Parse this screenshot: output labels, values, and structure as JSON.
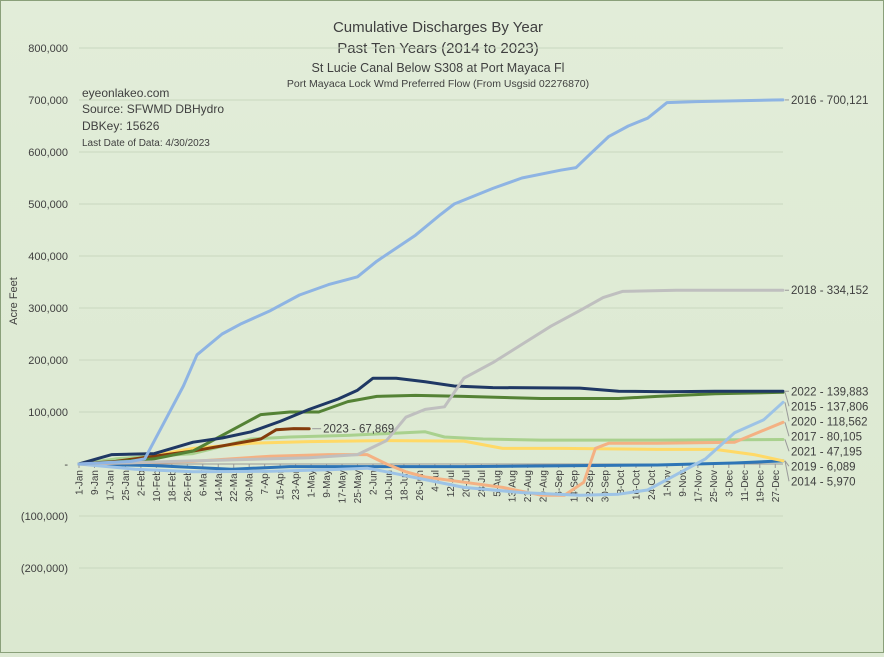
{
  "chart_data": {
    "type": "line",
    "title": "Cumulative Discharges By Year",
    "subtitle": "Past Ten Years (2014 to 2023)",
    "subtitle2": "St Lucie Canal Below S308 at Port Mayaca Fl",
    "subtitle3": "Port Mayaca Lock Wmd Preferred Flow (From Usgsid 02276870)",
    "info": {
      "site": "eyeonlakeo.com",
      "source": "Source: SFWMD DBHydro",
      "dbkey": "DBKey: 15626",
      "last_date": "Last Date of Data: 4/30/2023"
    },
    "ylabel": "Acre Feet",
    "xlabel": "",
    "ylim": [
      -200000,
      800000
    ],
    "yticks": [
      {
        "value": 800000,
        "label": "800,000"
      },
      {
        "value": 700000,
        "label": "700,000"
      },
      {
        "value": 600000,
        "label": "600,000"
      },
      {
        "value": 500000,
        "label": "500,000"
      },
      {
        "value": 400000,
        "label": "400,000"
      },
      {
        "value": 300000,
        "label": "300,000"
      },
      {
        "value": 200000,
        "label": "200,000"
      },
      {
        "value": 100000,
        "label": "100,000"
      },
      {
        "value": 0,
        "label": "-"
      },
      {
        "value": -100000,
        "label": "(100,000)"
      },
      {
        "value": -200000,
        "label": "(200,000)"
      }
    ],
    "xlim": [
      1,
      365
    ],
    "xticks": [
      {
        "day": 1,
        "label": "1-Jan"
      },
      {
        "day": 9,
        "label": "9-Jan"
      },
      {
        "day": 17,
        "label": "17-Jan"
      },
      {
        "day": 25,
        "label": "25-Jan"
      },
      {
        "day": 33,
        "label": "2-Feb"
      },
      {
        "day": 41,
        "label": "10-Feb"
      },
      {
        "day": 49,
        "label": "18-Feb"
      },
      {
        "day": 57,
        "label": "26-Feb"
      },
      {
        "day": 65,
        "label": "6-Mar"
      },
      {
        "day": 73,
        "label": "14-Mar"
      },
      {
        "day": 81,
        "label": "22-Mar"
      },
      {
        "day": 89,
        "label": "30-Mar"
      },
      {
        "day": 97,
        "label": "7-Apr"
      },
      {
        "day": 105,
        "label": "15-Apr"
      },
      {
        "day": 113,
        "label": "23-Apr"
      },
      {
        "day": 121,
        "label": "1-May"
      },
      {
        "day": 129,
        "label": "9-May"
      },
      {
        "day": 137,
        "label": "17-May"
      },
      {
        "day": 145,
        "label": "25-May"
      },
      {
        "day": 153,
        "label": "2-Jun"
      },
      {
        "day": 161,
        "label": "10-Jun"
      },
      {
        "day": 169,
        "label": "18-Jun"
      },
      {
        "day": 177,
        "label": "26-Jun"
      },
      {
        "day": 185,
        "label": "4-Jul"
      },
      {
        "day": 193,
        "label": "12-Jul"
      },
      {
        "day": 201,
        "label": "20-Jul"
      },
      {
        "day": 209,
        "label": "28-Jul"
      },
      {
        "day": 217,
        "label": "5-Aug"
      },
      {
        "day": 225,
        "label": "13-Aug"
      },
      {
        "day": 233,
        "label": "21-Aug"
      },
      {
        "day": 241,
        "label": "29-Aug"
      },
      {
        "day": 249,
        "label": "6-Sep"
      },
      {
        "day": 257,
        "label": "14-Sep"
      },
      {
        "day": 265,
        "label": "22-Sep"
      },
      {
        "day": 273,
        "label": "30-Sep"
      },
      {
        "day": 281,
        "label": "8-Oct"
      },
      {
        "day": 289,
        "label": "16-Oct"
      },
      {
        "day": 297,
        "label": "24-Oct"
      },
      {
        "day": 305,
        "label": "1-Nov"
      },
      {
        "day": 313,
        "label": "9-Nov"
      },
      {
        "day": 321,
        "label": "17-Nov"
      },
      {
        "day": 329,
        "label": "25-Nov"
      },
      {
        "day": 337,
        "label": "3-Dec"
      },
      {
        "day": 345,
        "label": "11-Dec"
      },
      {
        "day": 353,
        "label": "19-Dec"
      },
      {
        "day": 361,
        "label": "27-Dec"
      }
    ],
    "grid": true,
    "legend": "end-labels-right",
    "series": [
      {
        "year": "2016",
        "label": "2016 - 700,121",
        "color": "#8eb4e3",
        "final": 700121,
        "points": [
          [
            1,
            0
          ],
          [
            28,
            5000
          ],
          [
            35,
            10000
          ],
          [
            45,
            80000
          ],
          [
            55,
            150000
          ],
          [
            62,
            210000
          ],
          [
            75,
            250000
          ],
          [
            85,
            270000
          ],
          [
            100,
            295000
          ],
          [
            115,
            325000
          ],
          [
            130,
            345000
          ],
          [
            140,
            355000
          ],
          [
            145,
            360000
          ],
          [
            155,
            390000
          ],
          [
            175,
            440000
          ],
          [
            188,
            480000
          ],
          [
            195,
            500000
          ],
          [
            215,
            530000
          ],
          [
            230,
            550000
          ],
          [
            250,
            565000
          ],
          [
            258,
            570000
          ],
          [
            265,
            595000
          ],
          [
            275,
            630000
          ],
          [
            285,
            650000
          ],
          [
            295,
            665000
          ],
          [
            300,
            680000
          ],
          [
            305,
            695000
          ],
          [
            320,
            697000
          ],
          [
            360,
            700000
          ],
          [
            365,
            700121
          ]
        ]
      },
      {
        "year": "2018",
        "label": "2018 - 334,152",
        "color": "#bfbfbf",
        "final": 334152,
        "points": [
          [
            1,
            0
          ],
          [
            60,
            6000
          ],
          [
            120,
            12000
          ],
          [
            145,
            18000
          ],
          [
            160,
            45000
          ],
          [
            170,
            90000
          ],
          [
            180,
            105000
          ],
          [
            190,
            110000
          ],
          [
            200,
            165000
          ],
          [
            215,
            195000
          ],
          [
            230,
            230000
          ],
          [
            245,
            265000
          ],
          [
            260,
            295000
          ],
          [
            272,
            320000
          ],
          [
            282,
            332000
          ],
          [
            310,
            334000
          ],
          [
            365,
            334152
          ]
        ]
      },
      {
        "year": "2022",
        "label": "2022 - 139,883",
        "color": "#1f3864",
        "final": 139883,
        "points": [
          [
            1,
            0
          ],
          [
            12,
            12000
          ],
          [
            18,
            18000
          ],
          [
            40,
            20000
          ],
          [
            60,
            42000
          ],
          [
            75,
            50000
          ],
          [
            90,
            62000
          ],
          [
            105,
            82000
          ],
          [
            120,
            105000
          ],
          [
            135,
            125000
          ],
          [
            145,
            142000
          ],
          [
            153,
            165000
          ],
          [
            165,
            165000
          ],
          [
            180,
            158000
          ],
          [
            195,
            150000
          ],
          [
            215,
            147000
          ],
          [
            260,
            146000
          ],
          [
            280,
            140000
          ],
          [
            305,
            139000
          ],
          [
            330,
            140000
          ],
          [
            365,
            139883
          ]
        ]
      },
      {
        "year": "2015",
        "label": "2015 - 137,806",
        "color": "#548235",
        "final": 137806,
        "points": [
          [
            1,
            0
          ],
          [
            20,
            4000
          ],
          [
            40,
            10000
          ],
          [
            60,
            25000
          ],
          [
            80,
            65000
          ],
          [
            95,
            95000
          ],
          [
            110,
            100000
          ],
          [
            125,
            100000
          ],
          [
            140,
            120000
          ],
          [
            155,
            130000
          ],
          [
            175,
            132000
          ],
          [
            200,
            130000
          ],
          [
            240,
            126000
          ],
          [
            280,
            126000
          ],
          [
            300,
            130000
          ],
          [
            330,
            135000
          ],
          [
            365,
            137806
          ]
        ]
      },
      {
        "year": "2020",
        "label": "2020 - 118,562",
        "color": "#9dc3e6",
        "final": 118562,
        "points": [
          [
            1,
            0
          ],
          [
            30,
            -10000
          ],
          [
            60,
            -15000
          ],
          [
            100,
            -14000
          ],
          [
            130,
            -11000
          ],
          [
            150,
            -8000
          ],
          [
            160,
            -15000
          ],
          [
            180,
            -30000
          ],
          [
            200,
            -45000
          ],
          [
            230,
            -55000
          ],
          [
            260,
            -60000
          ],
          [
            280,
            -58000
          ],
          [
            295,
            -50000
          ],
          [
            310,
            -20000
          ],
          [
            325,
            10000
          ],
          [
            340,
            60000
          ],
          [
            355,
            85000
          ],
          [
            365,
            118562
          ]
        ]
      },
      {
        "year": "2017",
        "label": "2017 - 80,105",
        "color": "#f4b183",
        "final": 80105,
        "points": [
          [
            1,
            0
          ],
          [
            60,
            5000
          ],
          [
            100,
            15000
          ],
          [
            130,
            18000
          ],
          [
            150,
            18000
          ],
          [
            160,
            0
          ],
          [
            170,
            -15000
          ],
          [
            180,
            -25000
          ],
          [
            200,
            -35000
          ],
          [
            220,
            -45000
          ],
          [
            240,
            -60000
          ],
          [
            252,
            -60000
          ],
          [
            262,
            -35000
          ],
          [
            268,
            30000
          ],
          [
            275,
            40000
          ],
          [
            300,
            40000
          ],
          [
            340,
            42000
          ],
          [
            355,
            65000
          ],
          [
            365,
            80105
          ]
        ]
      },
      {
        "year": "2023",
        "label": "2023 - 67,869",
        "color": "#843c0c",
        "final": 67869,
        "points": [
          [
            1,
            0
          ],
          [
            20,
            5000
          ],
          [
            40,
            15000
          ],
          [
            60,
            25000
          ],
          [
            80,
            38000
          ],
          [
            95,
            48000
          ],
          [
            103,
            66000
          ],
          [
            112,
            68000
          ],
          [
            120,
            67869
          ]
        ]
      },
      {
        "year": "2021",
        "label": "2021 - 47,195",
        "color": "#a9d18e",
        "final": 47195,
        "points": [
          [
            1,
            0
          ],
          [
            20,
            10000
          ],
          [
            60,
            20000
          ],
          [
            90,
            48000
          ],
          [
            110,
            52000
          ],
          [
            140,
            55000
          ],
          [
            180,
            62000
          ],
          [
            190,
            52000
          ],
          [
            210,
            48000
          ],
          [
            240,
            46000
          ],
          [
            300,
            46000
          ],
          [
            365,
            47195
          ]
        ]
      },
      {
        "year": "2019",
        "label": "2019 - 6,089",
        "color": "#ffd966",
        "final": 6089,
        "points": [
          [
            1,
            0
          ],
          [
            30,
            10000
          ],
          [
            60,
            30000
          ],
          [
            90,
            40000
          ],
          [
            120,
            43000
          ],
          [
            160,
            45000
          ],
          [
            200,
            44000
          ],
          [
            220,
            30000
          ],
          [
            250,
            30000
          ],
          [
            300,
            28000
          ],
          [
            330,
            28000
          ],
          [
            350,
            18000
          ],
          [
            365,
            6089
          ]
        ]
      },
      {
        "year": "2014",
        "label": "2014 - 5,970",
        "color": "#2e75b6",
        "final": 5970,
        "points": [
          [
            1,
            0
          ],
          [
            40,
            -3000
          ],
          [
            80,
            -10000
          ],
          [
            110,
            -5000
          ],
          [
            150,
            -5000
          ],
          [
            200,
            -5000
          ],
          [
            260,
            -3000
          ],
          [
            300,
            -2000
          ],
          [
            340,
            2000
          ],
          [
            365,
            5970
          ]
        ]
      }
    ]
  }
}
